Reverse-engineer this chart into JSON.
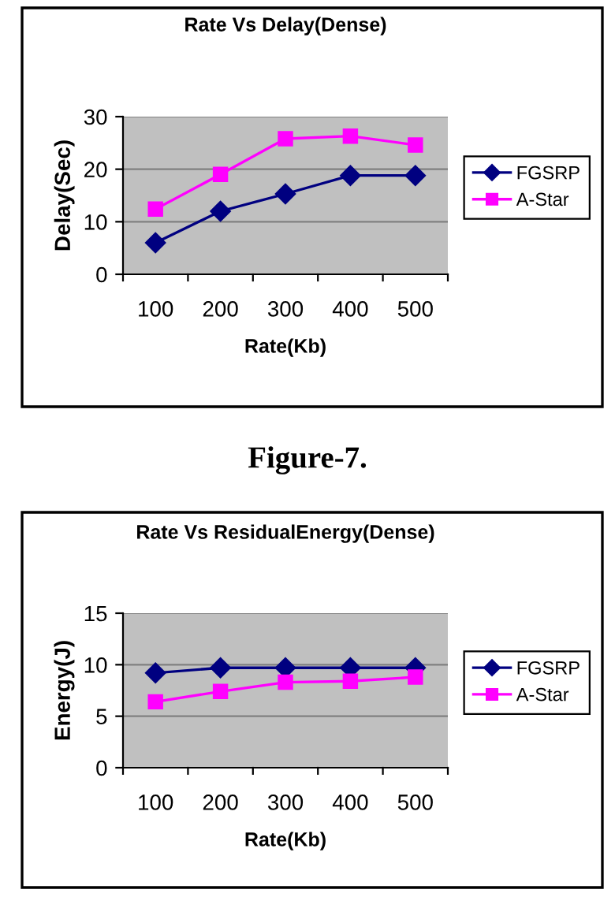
{
  "chart_data": [
    {
      "type": "line",
      "title": "Rate Vs Delay(Dense)",
      "xlabel": "Rate(Kb)",
      "ylabel": "Delay(Sec)",
      "categories": [
        "100",
        "200",
        "300",
        "400",
        "500"
      ],
      "series": [
        {
          "name": "FGSRP",
          "color": "#000080",
          "marker": "diamond",
          "values": [
            6,
            12,
            15.3,
            18.8,
            18.8
          ]
        },
        {
          "name": "A-Star",
          "color": "#ff00ff",
          "marker": "square",
          "values": [
            12.4,
            19,
            25.8,
            26.3,
            24.6
          ]
        }
      ],
      "ylim": [
        0,
        30
      ],
      "yticks": [
        0,
        10,
        20,
        30
      ],
      "grid": "y",
      "legend": "right",
      "annotations": [
        "Figure-7."
      ]
    },
    {
      "type": "line",
      "title": "Rate Vs ResidualEnergy(Dense)",
      "xlabel": "Rate(Kb)",
      "ylabel": "Energy(J)",
      "categories": [
        "100",
        "200",
        "300",
        "400",
        "500"
      ],
      "series": [
        {
          "name": "FGSRP",
          "color": "#000080",
          "marker": "diamond",
          "values": [
            9.2,
            9.7,
            9.7,
            9.7,
            9.7
          ]
        },
        {
          "name": "A-Star",
          "color": "#ff00ff",
          "marker": "square",
          "values": [
            6.4,
            7.4,
            8.3,
            8.4,
            8.8
          ]
        }
      ],
      "ylim": [
        0,
        15
      ],
      "yticks": [
        0,
        5,
        10,
        15
      ],
      "grid": "y",
      "legend": "right"
    }
  ]
}
